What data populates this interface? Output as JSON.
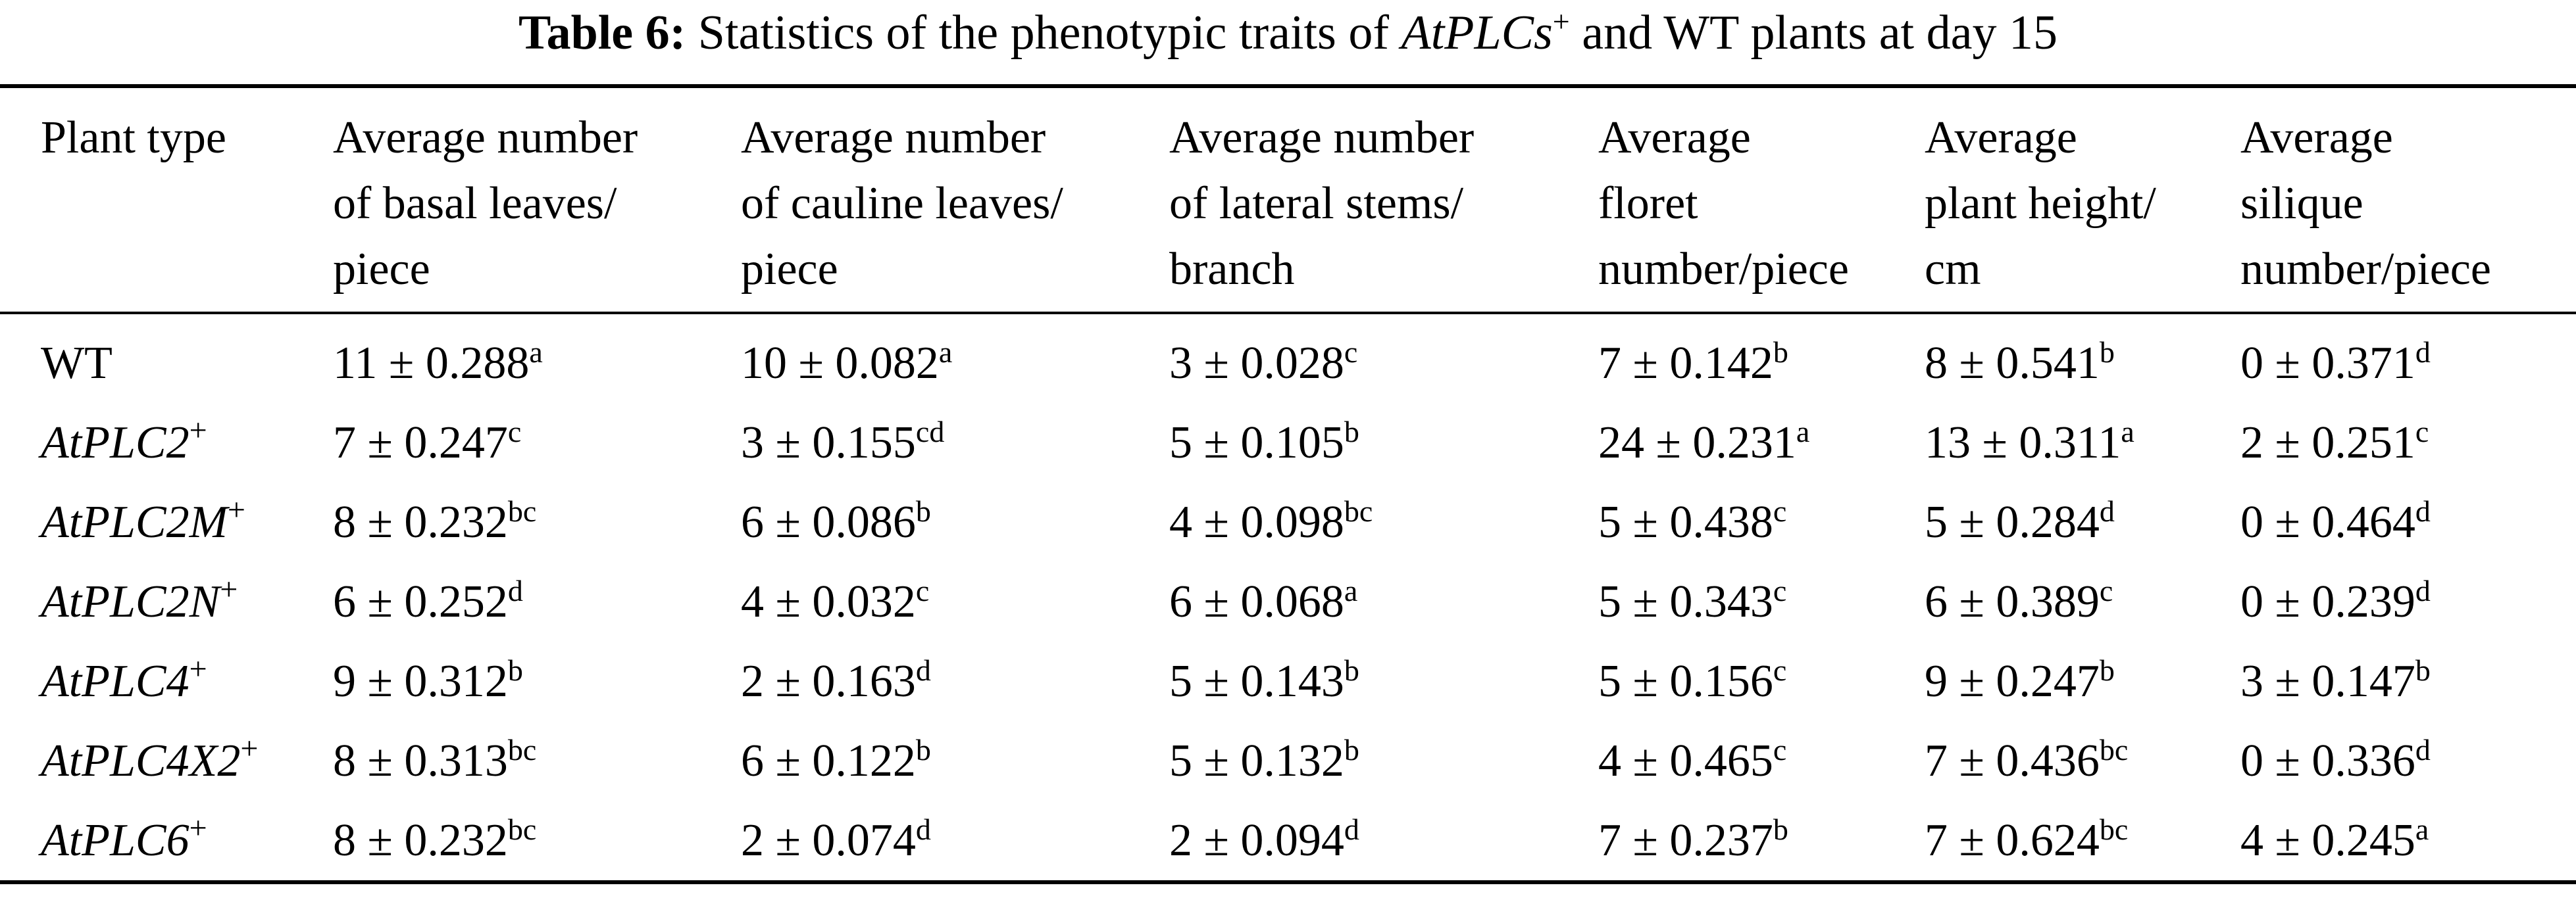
{
  "caption": {
    "label": "Table 6:",
    "text_before": " Statistics of the phenotypic traits of ",
    "italic": "AtPLCs",
    "sup": "+",
    "text_after": " and WT plants at day 15"
  },
  "table": {
    "columns": [
      "Plant type",
      "Average number\nof basal leaves/\npiece",
      "Average number\nof cauline leaves/\npiece",
      "Average number\nof lateral stems/\nbranch",
      "Average\nfloret\nnumber/piece",
      "Average\nplant height/\ncm",
      "Average\nsilique\nnumber/piece"
    ],
    "rows": [
      {
        "plant": "WT",
        "italic": false,
        "sup": "",
        "cells": [
          {
            "v": "11 ± 0.288",
            "l": "a"
          },
          {
            "v": "10 ± 0.082",
            "l": "a"
          },
          {
            "v": "3 ± 0.028",
            "l": "c"
          },
          {
            "v": "7 ± 0.142",
            "l": "b"
          },
          {
            "v": "8 ± 0.541",
            "l": "b"
          },
          {
            "v": "0 ± 0.371",
            "l": "d"
          }
        ]
      },
      {
        "plant": "AtPLC2",
        "italic": true,
        "sup": "+",
        "cells": [
          {
            "v": "7 ± 0.247",
            "l": "c"
          },
          {
            "v": "3 ± 0.155",
            "l": "cd"
          },
          {
            "v": "5 ± 0.105",
            "l": "b"
          },
          {
            "v": "24 ± 0.231",
            "l": "a"
          },
          {
            "v": "13 ± 0.311",
            "l": "a"
          },
          {
            "v": "2 ± 0.251",
            "l": "c"
          }
        ]
      },
      {
        "plant": "AtPLC2M",
        "italic": true,
        "sup": "+",
        "cells": [
          {
            "v": "8 ± 0.232",
            "l": "bc"
          },
          {
            "v": "6 ± 0.086",
            "l": "b"
          },
          {
            "v": "4 ± 0.098",
            "l": "bc"
          },
          {
            "v": "5 ± 0.438",
            "l": "c"
          },
          {
            "v": "5 ± 0.284",
            "l": "d"
          },
          {
            "v": "0 ± 0.464",
            "l": "d"
          }
        ]
      },
      {
        "plant": "AtPLC2N",
        "italic": true,
        "sup": "+",
        "cells": [
          {
            "v": "6 ± 0.252",
            "l": "d"
          },
          {
            "v": "4 ± 0.032",
            "l": "c"
          },
          {
            "v": "6 ± 0.068",
            "l": "a"
          },
          {
            "v": "5 ± 0.343",
            "l": "c"
          },
          {
            "v": "6 ± 0.389",
            "l": "c"
          },
          {
            "v": "0 ± 0.239",
            "l": "d"
          }
        ]
      },
      {
        "plant": "AtPLC4",
        "italic": true,
        "sup": "+",
        "cells": [
          {
            "v": "9 ± 0.312",
            "l": "b"
          },
          {
            "v": "2 ± 0.163",
            "l": "d"
          },
          {
            "v": "5 ± 0.143",
            "l": "b"
          },
          {
            "v": "5 ± 0.156",
            "l": "c"
          },
          {
            "v": "9 ± 0.247",
            "l": "b"
          },
          {
            "v": "3 ± 0.147",
            "l": "b"
          }
        ]
      },
      {
        "plant": "AtPLC4X2",
        "italic": true,
        "sup": "+",
        "cells": [
          {
            "v": "8 ± 0.313",
            "l": "bc"
          },
          {
            "v": "6 ± 0.122",
            "l": "b"
          },
          {
            "v": "5 ± 0.132",
            "l": "b"
          },
          {
            "v": "4 ± 0.465",
            "l": "c"
          },
          {
            "v": "7 ± 0.436",
            "l": "bc"
          },
          {
            "v": "0 ± 0.336",
            "l": "d"
          }
        ]
      },
      {
        "plant": "AtPLC6",
        "italic": true,
        "sup": "+",
        "cells": [
          {
            "v": "8 ± 0.232",
            "l": "bc"
          },
          {
            "v": "2 ± 0.074",
            "l": "d"
          },
          {
            "v": "2 ± 0.094",
            "l": "d"
          },
          {
            "v": "7 ± 0.237",
            "l": "b"
          },
          {
            "v": "7 ± 0.624",
            "l": "bc"
          },
          {
            "v": "4 ± 0.245",
            "l": "a"
          }
        ]
      }
    ]
  }
}
